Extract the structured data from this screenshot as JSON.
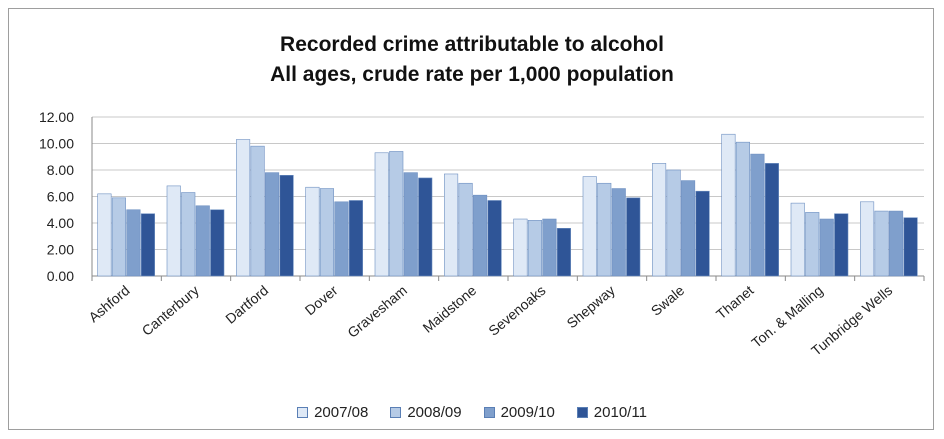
{
  "chart_data": {
    "type": "bar",
    "title": "Recorded crime attributable to alcohol",
    "subtitle": "All ages, crude rate per 1,000 population",
    "categories": [
      "Ashford",
      "Canterbury",
      "Dartford",
      "Dover",
      "Gravesham",
      "Maidstone",
      "Sevenoaks",
      "Shepway",
      "Swale",
      "Thanet",
      "Ton. & Malling",
      "Tunbridge Wells"
    ],
    "series": [
      {
        "name": "2007/08",
        "color": "#dfe9f6",
        "values": [
          6.2,
          6.8,
          10.3,
          6.7,
          9.3,
          7.7,
          4.3,
          7.5,
          8.5,
          10.7,
          5.5,
          5.6
        ]
      },
      {
        "name": "2008/09",
        "color": "#b6cbe6",
        "values": [
          5.9,
          6.3,
          9.8,
          6.6,
          9.4,
          7.0,
          4.2,
          7.0,
          8.0,
          10.1,
          4.8,
          4.9
        ]
      },
      {
        "name": "2009/10",
        "color": "#7f9fcc",
        "values": [
          5.0,
          5.3,
          7.8,
          5.6,
          7.8,
          6.1,
          4.3,
          6.6,
          7.2,
          9.2,
          4.3,
          4.9
        ]
      },
      {
        "name": "2010/11",
        "color": "#2f5597",
        "values": [
          4.7,
          5.0,
          7.6,
          5.7,
          7.4,
          5.7,
          3.6,
          5.9,
          6.4,
          8.5,
          4.7,
          4.4
        ]
      }
    ],
    "ylim": [
      0,
      12
    ],
    "yticks": [
      "0.00",
      "2.00",
      "4.00",
      "6.00",
      "8.00",
      "10.00",
      "12.00"
    ],
    "grid": true,
    "legend": "bottom"
  }
}
